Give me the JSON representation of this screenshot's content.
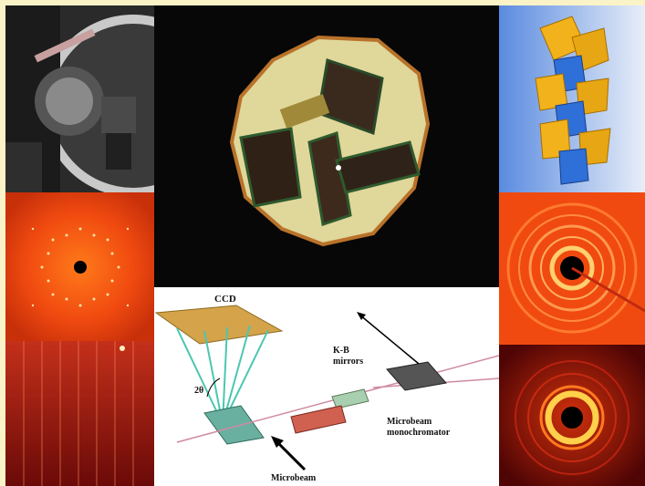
{
  "background_color": "#fbf3c8",
  "panels": {
    "goniometer_photo": {
      "icon": "diffractometer-photo"
    },
    "crystal_micrograph": {
      "icon": "crystal-inclusion-photo"
    },
    "polyhedra_model": {
      "icon": "crystal-structure-polyhedra",
      "colors": [
        "#f2b21b",
        "#2e6fd8"
      ]
    },
    "single_crystal_pattern": {
      "icon": "diffraction-spots"
    },
    "streak_pattern": {
      "icon": "diffraction-streaks"
    },
    "ring_pattern_orange": {
      "icon": "powder-rings"
    },
    "ring_pattern_red": {
      "icon": "powder-rings"
    },
    "schematic": {
      "labels": {
        "ccd": "CCD",
        "kb_mirrors_line1": "K-B",
        "kb_mirrors_line2": "mirrors",
        "two_theta": "2θ",
        "monochromator_line1": "Microbeam",
        "monochromator_line2": "monochromator",
        "microbeam": "Microbeam"
      }
    }
  }
}
